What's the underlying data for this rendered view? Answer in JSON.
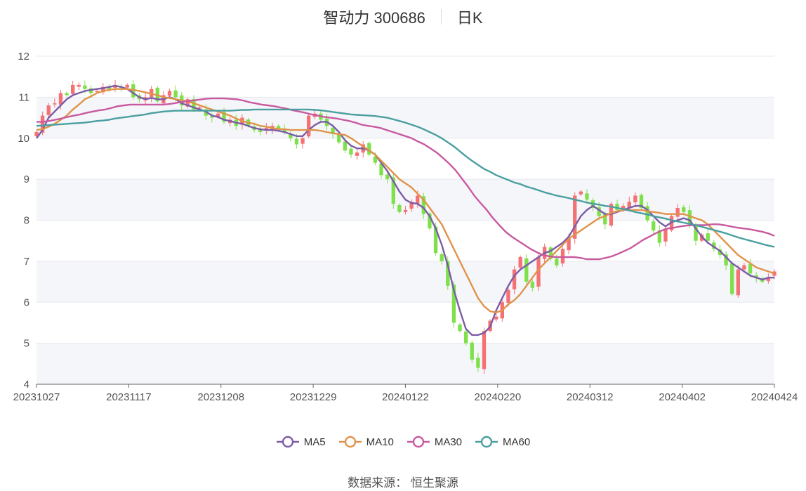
{
  "title": {
    "name": "智动力 300686",
    "period": "日K"
  },
  "source": {
    "label": "数据来源：",
    "value": "恒生聚源"
  },
  "chart_data": {
    "type": "candlestick",
    "ylim": [
      4,
      12
    ],
    "yticks": [
      "12",
      "11",
      "10",
      "9",
      "8",
      "7",
      "6",
      "5",
      "4"
    ],
    "xticks": [
      "20231027",
      "20231117",
      "20231208",
      "20231229",
      "20240122",
      "20240220",
      "20240312",
      "20240402",
      "20240424"
    ],
    "grid": true,
    "legend_position": "bottom",
    "candles": {
      "up_color": "#f47174",
      "down_color": "#7ee04a",
      "close": [
        10.15,
        10.55,
        10.8,
        10.85,
        11.1,
        11.05,
        11.3,
        11.3,
        11.2,
        11.1,
        11.15,
        11.25,
        11.2,
        11.3,
        11.25,
        11.3,
        11.0,
        10.95,
        11.0,
        11.2,
        10.9,
        11.05,
        11.15,
        11.0,
        10.8,
        10.95,
        10.7,
        10.75,
        10.55,
        10.5,
        10.6,
        10.4,
        10.45,
        10.3,
        10.5,
        10.3,
        10.2,
        10.15,
        10.25,
        10.3,
        10.2,
        10.15,
        10.0,
        9.85,
        10.0,
        10.55,
        10.6,
        10.45,
        10.3,
        10.1,
        9.9,
        9.7,
        9.6,
        9.65,
        9.85,
        9.6,
        9.4,
        9.1,
        9.0,
        8.4,
        8.2,
        8.25,
        8.45,
        8.6,
        8.15,
        7.8,
        7.2,
        7.0,
        6.4,
        5.5,
        5.3,
        5.0,
        4.6,
        4.4,
        5.3,
        5.55,
        5.65,
        6.0,
        6.3,
        6.8,
        7.1,
        6.5,
        6.35,
        7.1,
        7.35,
        7.05,
        6.9,
        7.3,
        7.55,
        8.6,
        8.7,
        8.5,
        8.3,
        8.1,
        7.9,
        8.4,
        8.25,
        8.35,
        8.45,
        8.6,
        8.3,
        8.0,
        7.75,
        7.45,
        7.8,
        8.1,
        8.3,
        8.2,
        7.9,
        7.5,
        7.65,
        7.5,
        7.3,
        7.15,
        6.9,
        6.2,
        6.8,
        6.9,
        6.7,
        6.6,
        6.5,
        6.6,
        6.75
      ]
    },
    "series": [
      {
        "name": "MA5",
        "color": "#7b5ca7",
        "y": [
          10.0,
          10.2,
          10.5,
          10.65,
          10.8,
          10.95,
          11.05,
          11.1,
          11.15,
          11.18,
          11.2,
          11.22,
          11.25,
          11.28,
          11.25,
          11.2,
          11.1,
          11.0,
          10.95,
          10.98,
          10.95,
          10.95,
          11.0,
          10.95,
          10.85,
          10.8,
          10.75,
          10.7,
          10.65,
          10.55,
          10.52,
          10.45,
          10.42,
          10.38,
          10.35,
          10.3,
          10.25,
          10.22,
          10.2,
          10.2,
          10.18,
          10.15,
          10.1,
          10.05,
          10.05,
          10.2,
          10.32,
          10.4,
          10.4,
          10.3,
          10.15,
          9.95,
          9.82,
          9.75,
          9.75,
          9.7,
          9.6,
          9.4,
          9.2,
          8.95,
          8.7,
          8.5,
          8.42,
          8.4,
          8.3,
          8.1,
          7.8,
          7.4,
          6.9,
          6.3,
          5.8,
          5.35,
          5.2,
          5.2,
          5.25,
          5.4,
          5.8,
          6.1,
          6.4,
          6.65,
          6.8,
          6.9,
          7.0,
          7.1,
          7.2,
          7.25,
          7.35,
          7.45,
          7.6,
          7.85,
          8.1,
          8.25,
          8.35,
          8.25,
          8.15,
          8.15,
          8.2,
          8.25,
          8.3,
          8.35,
          8.35,
          8.25,
          8.1,
          7.95,
          7.85,
          7.95,
          8.0,
          8.05,
          8.0,
          7.8,
          7.6,
          7.45,
          7.35,
          7.25,
          7.1,
          6.95,
          6.85,
          6.75,
          6.65,
          6.6,
          6.55,
          6.6,
          6.6
        ]
      },
      {
        "name": "MA10",
        "color": "#e0934a",
        "y": [
          10.2,
          10.22,
          10.28,
          10.35,
          10.45,
          10.55,
          10.7,
          10.82,
          10.95,
          11.02,
          11.1,
          11.15,
          11.18,
          11.2,
          11.2,
          11.2,
          11.18,
          11.15,
          11.12,
          11.08,
          11.05,
          11.0,
          10.98,
          10.95,
          10.92,
          10.9,
          10.85,
          10.8,
          10.75,
          10.7,
          10.65,
          10.6,
          10.55,
          10.48,
          10.42,
          10.38,
          10.35,
          10.3,
          10.28,
          10.25,
          10.22,
          10.22,
          10.2,
          10.2,
          10.2,
          10.2,
          10.2,
          10.18,
          10.15,
          10.12,
          10.1,
          10.08,
          10.0,
          9.9,
          9.8,
          9.7,
          9.6,
          9.45,
          9.3,
          9.15,
          9.0,
          8.9,
          8.8,
          8.65,
          8.5,
          8.3,
          8.1,
          7.9,
          7.6,
          7.3,
          7.0,
          6.7,
          6.4,
          6.1,
          5.9,
          5.78,
          5.75,
          5.8,
          5.95,
          6.05,
          6.2,
          6.4,
          6.6,
          6.8,
          6.95,
          7.1,
          7.25,
          7.4,
          7.55,
          7.65,
          7.75,
          7.85,
          7.95,
          8.05,
          8.1,
          8.18,
          8.22,
          8.25,
          8.25,
          8.25,
          8.25,
          8.22,
          8.2,
          8.18,
          8.15,
          8.15,
          8.15,
          8.15,
          8.1,
          8.05,
          8.0,
          7.9,
          7.75,
          7.6,
          7.45,
          7.3,
          7.15,
          7.05,
          6.95,
          6.85,
          6.8,
          6.75,
          6.7
        ]
      },
      {
        "name": "MA30",
        "color": "#c85a9f",
        "y": [
          10.4,
          10.4,
          10.42,
          10.45,
          10.48,
          10.52,
          10.55,
          10.58,
          10.62,
          10.65,
          10.68,
          10.7,
          10.74,
          10.78,
          10.8,
          10.82,
          10.82,
          10.82,
          10.82,
          10.82,
          10.82,
          10.83,
          10.85,
          10.88,
          10.9,
          10.92,
          10.94,
          10.96,
          10.97,
          10.97,
          10.97,
          10.96,
          10.95,
          10.92,
          10.88,
          10.85,
          10.82,
          10.8,
          10.78,
          10.75,
          10.72,
          10.68,
          10.65,
          10.62,
          10.58,
          10.55,
          10.52,
          10.5,
          10.48,
          10.45,
          10.42,
          10.38,
          10.33,
          10.3,
          10.28,
          10.25,
          10.2,
          10.15,
          10.1,
          10.05,
          10.0,
          9.92,
          9.85,
          9.75,
          9.65,
          9.52,
          9.38,
          9.22,
          9.02,
          8.82,
          8.6,
          8.42,
          8.25,
          8.05,
          7.88,
          7.72,
          7.6,
          7.5,
          7.4,
          7.3,
          7.22,
          7.15,
          7.12,
          7.1,
          7.1,
          7.1,
          7.1,
          7.08,
          7.05,
          7.05,
          7.05,
          7.08,
          7.12,
          7.18,
          7.25,
          7.32,
          7.42,
          7.52,
          7.6,
          7.68,
          7.75,
          7.8,
          7.82,
          7.85,
          7.87,
          7.88,
          7.88,
          7.88,
          7.9,
          7.9,
          7.88,
          7.85,
          7.82,
          7.8,
          7.78,
          7.75,
          7.72,
          7.68,
          7.62
        ]
      },
      {
        "name": "MA60",
        "color": "#4a9fa0",
        "y": [
          10.3,
          10.31,
          10.32,
          10.33,
          10.34,
          10.35,
          10.36,
          10.37,
          10.38,
          10.4,
          10.42,
          10.43,
          10.45,
          10.48,
          10.5,
          10.52,
          10.54,
          10.56,
          10.58,
          10.61,
          10.63,
          10.65,
          10.66,
          10.67,
          10.67,
          10.67,
          10.67,
          10.67,
          10.67,
          10.67,
          10.67,
          10.67,
          10.67,
          10.68,
          10.69,
          10.69,
          10.7,
          10.7,
          10.7,
          10.7,
          10.7,
          10.7,
          10.7,
          10.7,
          10.7,
          10.7,
          10.69,
          10.68,
          10.66,
          10.64,
          10.62,
          10.6,
          10.58,
          10.57,
          10.56,
          10.55,
          10.54,
          10.52,
          10.5,
          10.46,
          10.42,
          10.38,
          10.33,
          10.28,
          10.22,
          10.15,
          10.08,
          10.0,
          9.9,
          9.8,
          9.68,
          9.56,
          9.45,
          9.35,
          9.25,
          9.18,
          9.1,
          9.04,
          8.98,
          8.92,
          8.88,
          8.82,
          8.78,
          8.73,
          8.68,
          8.64,
          8.6,
          8.57,
          8.54,
          8.5,
          8.47,
          8.43,
          8.4,
          8.38,
          8.35,
          8.33,
          8.3,
          8.27,
          8.24,
          8.2,
          8.17,
          8.14,
          8.1,
          8.07,
          8.04,
          8.0,
          7.97,
          7.94,
          7.91,
          7.88,
          7.84,
          7.8,
          7.76,
          7.72,
          7.68,
          7.63,
          7.58,
          7.54,
          7.5,
          7.46,
          7.42,
          7.38,
          7.35
        ]
      }
    ]
  }
}
